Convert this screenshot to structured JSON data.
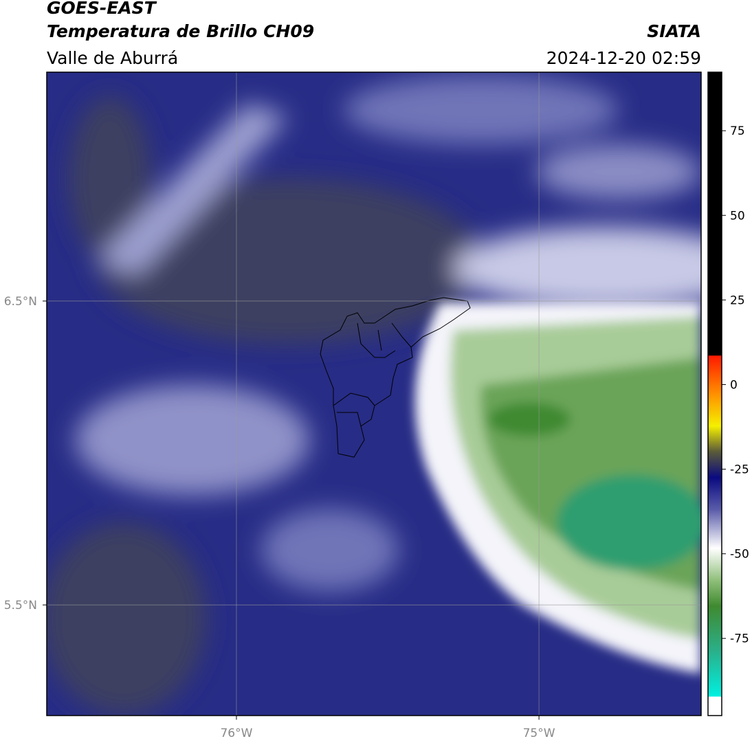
{
  "header": {
    "title": "GOES-EAST",
    "subtitle": "Temperatura de Brillo CH09",
    "region": "Valle de Aburrá",
    "source": "SIATA",
    "timestamp": "2024-12-20 02:59"
  },
  "map": {
    "xlim": [
      -76.627,
      -74.464
    ],
    "ylim": [
      5.136,
      7.253
    ],
    "xticks": [
      {
        "value": -76,
        "label": "76°W"
      },
      {
        "value": -75,
        "label": "75°W"
      }
    ],
    "yticks": [
      {
        "value": 6.5,
        "label": "6.5°N"
      },
      {
        "value": 5.5,
        "label": "5.5°N"
      }
    ],
    "grid": true
  },
  "colorbar": {
    "lim": [
      -97.8,
      92.3
    ],
    "ticks": [
      75,
      50,
      25,
      0,
      -25,
      -50,
      -75
    ]
  }
}
